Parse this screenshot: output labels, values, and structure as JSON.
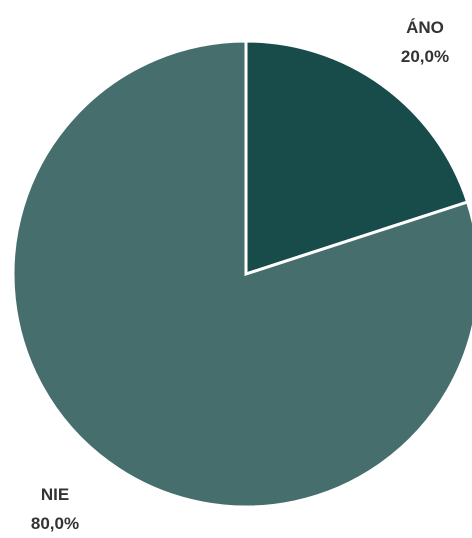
{
  "chart_data": {
    "type": "pie",
    "title": "",
    "slices": [
      {
        "label": "ÁNO",
        "value": 20.0,
        "value_label": "20,0%",
        "color": "#174c4b"
      },
      {
        "label": "NIE",
        "value": 80.0,
        "value_label": "80,0%",
        "color": "#466e6d"
      }
    ],
    "start_angle_deg": 0,
    "direction": "clockwise",
    "slice_border_color": "#ffffff",
    "legend": "none"
  }
}
